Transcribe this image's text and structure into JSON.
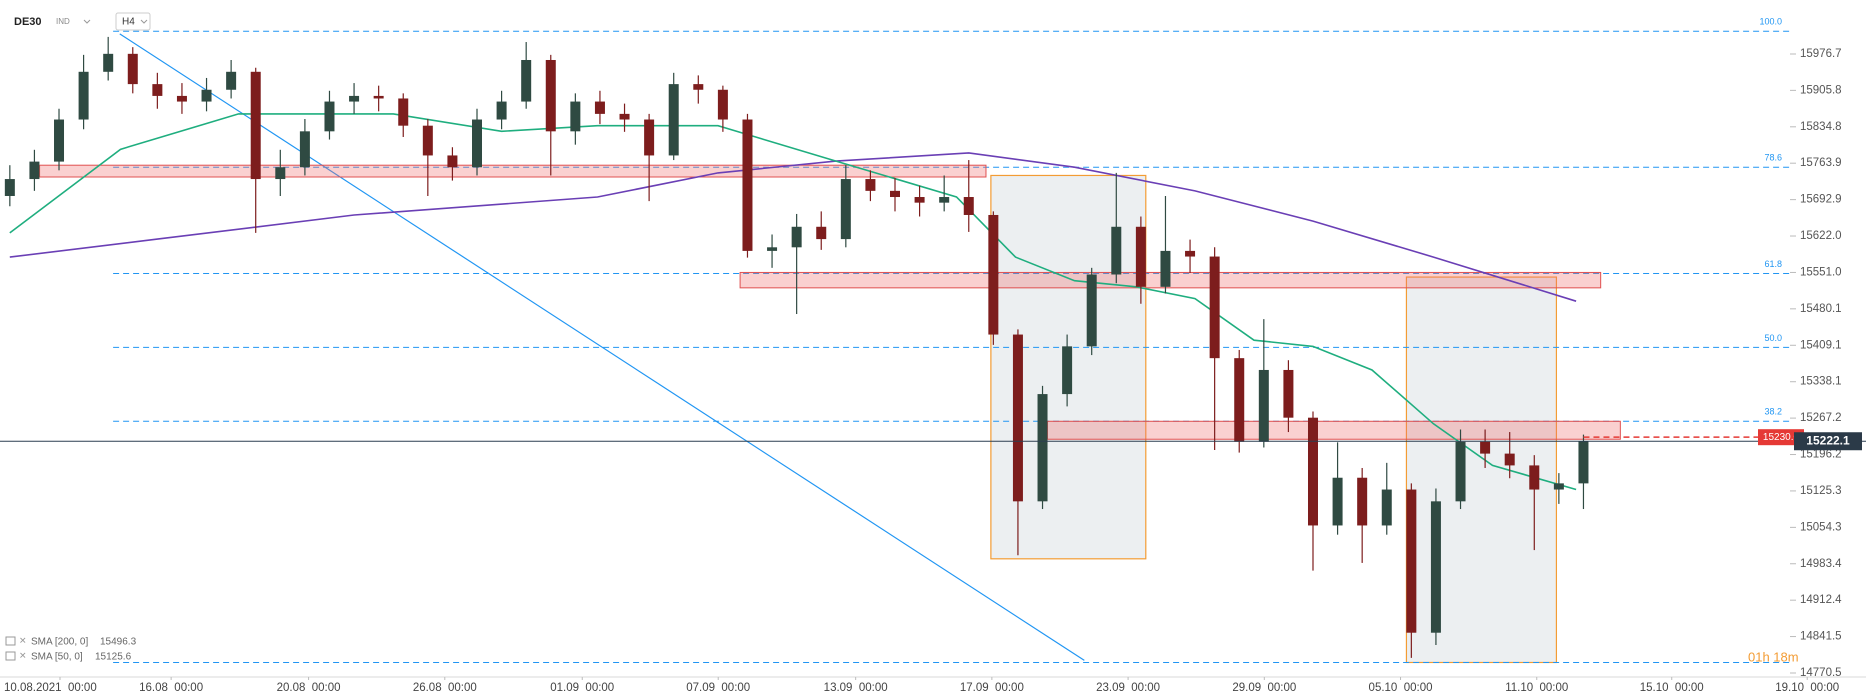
{
  "header": {
    "symbol": "DE30",
    "market": "IND",
    "timeframe": "H4"
  },
  "chart_data": {
    "type": "candlestick",
    "up_color": "#2f4a42",
    "down_color": "#7d1d1d",
    "open": [
      15700,
      15733,
      15767,
      15849,
      15942,
      15977,
      15918,
      15895,
      15884,
      15907,
      15942,
      15733,
      15756,
      15826,
      15884,
      15895,
      15890,
      15837,
      15779,
      15756,
      15849,
      15884,
      15965,
      15826,
      15884,
      15860,
      15849,
      15779,
      15918,
      15907,
      15849,
      15593,
      15600,
      15640,
      15616,
      15733,
      15710,
      15698,
      15687,
      15698,
      15663,
      15430,
      15105,
      15314,
      15407,
      15547,
      15640,
      15523,
      15593,
      15582,
      15384,
      15221,
      15361,
      15268,
      15058,
      15151,
      15058,
      15128,
      14849,
      15105,
      15221,
      15198,
      15175,
      15128,
      15140
    ],
    "high": [
      15760,
      15790,
      15870,
      15975,
      16010,
      15990,
      15940,
      15920,
      15930,
      15965,
      15950,
      15790,
      15850,
      15905,
      15920,
      15915,
      15900,
      15850,
      15795,
      15870,
      15905,
      16000,
      15975,
      15900,
      15905,
      15880,
      15860,
      15940,
      15935,
      15915,
      15860,
      15625,
      15665,
      15670,
      15760,
      15750,
      15735,
      15720,
      15740,
      15770,
      15670,
      15440,
      15330,
      15430,
      15560,
      15745,
      15660,
      15700,
      15615,
      15600,
      15400,
      15460,
      15380,
      15280,
      15220,
      15170,
      15180,
      15140,
      15130,
      15245,
      15245,
      15240,
      15195,
      15160,
      15235
    ],
    "low": [
      15680,
      15710,
      15750,
      15830,
      15925,
      15900,
      15870,
      15860,
      15865,
      15890,
      15628,
      15700,
      15740,
      15810,
      15860,
      15865,
      15815,
      15700,
      15730,
      15740,
      15830,
      15870,
      15740,
      15800,
      15840,
      15825,
      15690,
      15770,
      15880,
      15825,
      15580,
      15560,
      15470,
      15595,
      15600,
      15690,
      15670,
      15660,
      15670,
      15630,
      15410,
      15000,
      15090,
      15290,
      15390,
      15530,
      15490,
      15510,
      15550,
      15205,
      15200,
      15210,
      15240,
      14970,
      15040,
      14985,
      15040,
      14800,
      14825,
      15090,
      15170,
      15150,
      15010,
      15100,
      15090
    ],
    "close": [
      15733,
      15767,
      15849,
      15942,
      15977,
      15918,
      15895,
      15884,
      15907,
      15942,
      15733,
      15756,
      15826,
      15884,
      15895,
      15890,
      15837,
      15779,
      15756,
      15849,
      15884,
      15965,
      15826,
      15884,
      15860,
      15849,
      15779,
      15918,
      15907,
      15849,
      15593,
      15600,
      15640,
      15616,
      15733,
      15710,
      15698,
      15687,
      15698,
      15663,
      15430,
      15105,
      15314,
      15407,
      15547,
      15640,
      15523,
      15593,
      15582,
      15384,
      15221,
      15361,
      15268,
      15058,
      15151,
      15058,
      15128,
      14849,
      15105,
      15221,
      15198,
      15175,
      15128,
      15140,
      15222.1
    ],
    "xlim": [
      -0.4,
      72.4
    ],
    "xticks": [
      {
        "value": 2.04,
        "label": "10.08.2021  00:00"
      },
      {
        "value": 6.56,
        "label": "16.08  00:00"
      },
      {
        "value": 12.15,
        "label": "20.08  00:00"
      },
      {
        "value": 17.69,
        "label": "26.08  00:00"
      },
      {
        "value": 23.28,
        "label": "01.09  00:00"
      },
      {
        "value": 28.81,
        "label": "07.09  00:00"
      },
      {
        "value": 34.4,
        "label": "13.09  00:00"
      },
      {
        "value": 39.94,
        "label": "17.09  00:00"
      },
      {
        "value": 45.48,
        "label": "23.09  00:00"
      },
      {
        "value": 51.02,
        "label": "29.09  00:00"
      },
      {
        "value": 56.56,
        "label": "05.10  00:00"
      },
      {
        "value": 62.1,
        "label": "11.10  00:00"
      },
      {
        "value": 67.59,
        "label": "15.10  00:00"
      },
      {
        "value": 73.1,
        "label": "19.10  00:00"
      }
    ],
    "ylim": [
      14766.6,
      16081.9
    ],
    "yticks": [
      15976.7,
      15905.8,
      15834.8,
      15763.9,
      15692.9,
      {
        "value": 15622,
        "label": "15622.0"
      },
      {
        "value": 15551,
        "label": "15551.0"
      },
      15480.1,
      15409.1,
      15338.1,
      15267.2,
      15196.2,
      15125.3,
      15054.3,
      14983.4,
      14912.4,
      14841.5,
      14770.5
    ],
    "series": [
      {
        "name": "SMA [200, 0]",
        "color": "#6a3fb5",
        "last": 15496.3,
        "x": [
          0,
          6,
          14,
          23.9,
          28.8,
          33.6,
          39,
          43.3,
          48.2,
          53,
          57.9,
          63.7
        ],
        "values": [
          15581,
          15616,
          15663,
          15698,
          15745,
          15768,
          15784,
          15756,
          15710,
          15651,
          15581,
          15495
        ]
      },
      {
        "name": "SMA [50, 0]",
        "color": "#1fae7f",
        "last": 15125.6,
        "x": [
          0,
          4.5,
          9.3,
          15.6,
          20,
          23.9,
          28.8,
          33.6,
          38.5,
          40.9,
          43.3,
          45.8,
          48.2,
          50.6,
          53,
          55.4,
          57.9,
          60.3,
          63.7
        ],
        "values": [
          15628,
          15791,
          15860,
          15860,
          15826,
          15837,
          15837,
          15768,
          15698,
          15581,
          15535,
          15523,
          15500,
          15419,
          15407,
          15361,
          15256,
          15175,
          15128
        ]
      }
    ],
    "zones": [
      {
        "x": [
          1.21,
          39.7
        ],
        "y": [
          15737,
          15760
        ]
      },
      {
        "x": [
          29.7,
          64.7
        ],
        "y": [
          15521,
          15551
        ]
      },
      {
        "x": [
          42.2,
          65.5
        ],
        "y": [
          15226,
          15261
        ]
      }
    ],
    "boxes": [
      {
        "x": [
          39.9,
          46.2
        ],
        "y": [
          14993,
          15740
        ]
      },
      {
        "x": [
          56.8,
          62.9
        ],
        "y": [
          14791,
          15542
        ]
      }
    ],
    "fib": {
      "color": "#2196f3",
      "start": 4.2,
      "levels": [
        {
          "value": 100,
          "label": "100.0"
        },
        78.6,
        61.8,
        {
          "value": 50,
          "label": "50.0"
        },
        38.2,
        0
      ],
      "prices": [
        16021,
        15756,
        15549,
        15405,
        15261,
        14791
      ]
    },
    "trendline": {
      "color": "#2196f3",
      "x": [
        4.47,
        43.7
      ],
      "y": [
        16016,
        14795
      ]
    },
    "last_price": 15222.1,
    "alert_price": {
      "value": 15230,
      "label": "15230.0"
    },
    "countdown": "01h 18m"
  }
}
